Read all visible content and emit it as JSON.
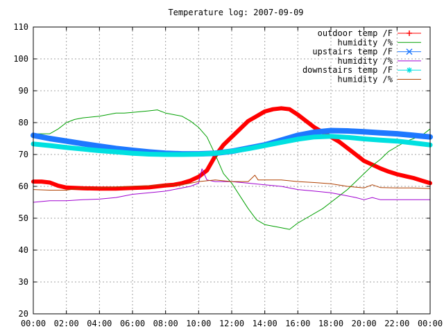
{
  "chart_data": {
    "type": "line",
    "title": "Temperature log: 2007-09-09",
    "xlabel": "",
    "ylabel": "",
    "x_ticks": [
      "00:00",
      "02:00",
      "04:00",
      "06:00",
      "08:00",
      "10:00",
      "12:00",
      "14:00",
      "16:00",
      "18:00",
      "20:00",
      "22:00",
      "00:00"
    ],
    "xlim_hours": [
      0,
      24
    ],
    "ylim": [
      20,
      110
    ],
    "y_ticks": [
      20,
      30,
      40,
      50,
      60,
      70,
      80,
      90,
      100,
      110
    ],
    "grid": true,
    "legend_position": "top-right",
    "series": [
      {
        "name": "outdoor temp /F",
        "color": "#ff0000",
        "marker": "plus",
        "x": [
          0,
          0.5,
          1,
          1.5,
          2,
          3,
          4,
          5,
          6,
          7,
          8,
          8.5,
          9,
          9.5,
          10,
          10.5,
          11,
          11.5,
          12,
          12.5,
          13,
          13.5,
          14,
          14.5,
          15,
          15.5,
          16,
          16.5,
          17,
          17.5,
          18,
          18.5,
          19,
          19.5,
          20,
          20.5,
          21,
          21.5,
          22,
          22.5,
          23,
          23.5,
          24
        ],
        "y": [
          61.5,
          61.5,
          61.2,
          60.2,
          59.6,
          59.4,
          59.3,
          59.3,
          59.5,
          59.7,
          60.3,
          60.5,
          61,
          61.8,
          63,
          65,
          69.5,
          73,
          75.5,
          78,
          80.5,
          82,
          83.5,
          84.2,
          84.5,
          84.2,
          82.5,
          80.5,
          78.5,
          77,
          75.5,
          74,
          72,
          70,
          68,
          66.8,
          65.6,
          64.6,
          63.8,
          63.2,
          62.6,
          61.8,
          61
        ]
      },
      {
        "name": "humidity /%",
        "color": "#00a000",
        "marker": "none",
        "x": [
          0,
          1,
          1.5,
          2,
          2.5,
          3,
          4,
          4.5,
          5,
          5.5,
          6,
          7,
          7.5,
          8,
          8.5,
          9,
          9.5,
          10,
          10.5,
          11,
          11.5,
          12,
          12.5,
          13,
          13.5,
          14,
          14.5,
          15,
          15.5,
          16,
          16.5,
          17,
          17.5,
          18,
          18.5,
          19,
          19.5,
          20,
          20.5,
          21,
          21.5,
          22,
          22.5,
          23,
          23.5,
          24
        ],
        "y": [
          76.5,
          76.5,
          78,
          80,
          81,
          81.5,
          82,
          82.5,
          83,
          83,
          83.2,
          83.7,
          84,
          83,
          82.5,
          82,
          80.5,
          78.5,
          75.5,
          70,
          64,
          61,
          57,
          53,
          49.5,
          48,
          47.5,
          47,
          46.5,
          48.5,
          50,
          51.5,
          53,
          55,
          57,
          59,
          61.5,
          64,
          66.5,
          68.5,
          71,
          72.5,
          74,
          75,
          76,
          78
        ]
      },
      {
        "name": "upstairs temp /F",
        "color": "#1e78ff",
        "marker": "cross",
        "x": [
          0,
          1,
          2,
          3,
          4,
          5,
          6,
          7,
          8,
          9,
          10,
          11,
          12,
          13,
          14,
          15,
          16,
          17,
          18,
          19,
          20,
          21,
          22,
          23,
          24
        ],
        "y": [
          76,
          75,
          74.2,
          73.4,
          72.6,
          71.9,
          71.3,
          70.8,
          70.4,
          70.2,
          70.2,
          70.4,
          71,
          72,
          73,
          74.5,
          76,
          77,
          77.5,
          77.4,
          77.1,
          76.8,
          76.5,
          76,
          75.5
        ]
      },
      {
        "name": "humidity /%",
        "color": "#a000d0",
        "marker": "none",
        "x": [
          0,
          1,
          2,
          3,
          4,
          5,
          6,
          7,
          8,
          9,
          9.5,
          10,
          10.2,
          10.5,
          11,
          12,
          13,
          14,
          15,
          16,
          17,
          18,
          19,
          19.5,
          20,
          20.5,
          21,
          22,
          23,
          24
        ],
        "y": [
          55,
          55.5,
          55.5,
          55.8,
          56,
          56.5,
          57.5,
          58,
          58.5,
          59.5,
          60,
          61,
          65.5,
          62,
          61.5,
          61.5,
          61,
          60.5,
          60,
          59,
          58.5,
          58,
          57,
          56.5,
          55.8,
          56.5,
          55.8,
          55.8,
          55.8,
          55.8
        ]
      },
      {
        "name": "downstairs temp /F",
        "color": "#00e0e0",
        "marker": "star",
        "x": [
          0,
          1,
          2,
          3,
          4,
          5,
          6,
          7,
          8,
          9,
          10,
          11,
          12,
          13,
          14,
          15,
          16,
          17,
          18,
          19,
          20,
          21,
          22,
          23,
          24
        ],
        "y": [
          73.3,
          72.8,
          72.2,
          71.7,
          71.2,
          70.8,
          70.4,
          70.1,
          70,
          70,
          70.1,
          70.4,
          71,
          71.8,
          72.8,
          73.8,
          74.8,
          75.5,
          75.7,
          75.4,
          74.9,
          74.5,
          74.2,
          73.6,
          73
        ]
      },
      {
        "name": "humidity /%",
        "color": "#b04000",
        "marker": "none",
        "x": [
          0,
          1,
          2,
          3,
          4,
          5,
          6,
          7,
          8,
          9,
          10,
          11,
          12,
          13,
          13.4,
          13.6,
          14,
          15,
          16,
          17,
          18,
          19,
          20,
          20.5,
          21,
          22,
          23,
          24
        ],
        "y": [
          59,
          58.8,
          58.8,
          59.5,
          59.5,
          59.8,
          60,
          60.2,
          60.5,
          60.5,
          61.5,
          62,
          61.5,
          61.5,
          63.5,
          62,
          62,
          62,
          61.5,
          61.2,
          60.8,
          60,
          59.5,
          60.5,
          59.6,
          59.5,
          59.5,
          59.3
        ]
      }
    ]
  }
}
